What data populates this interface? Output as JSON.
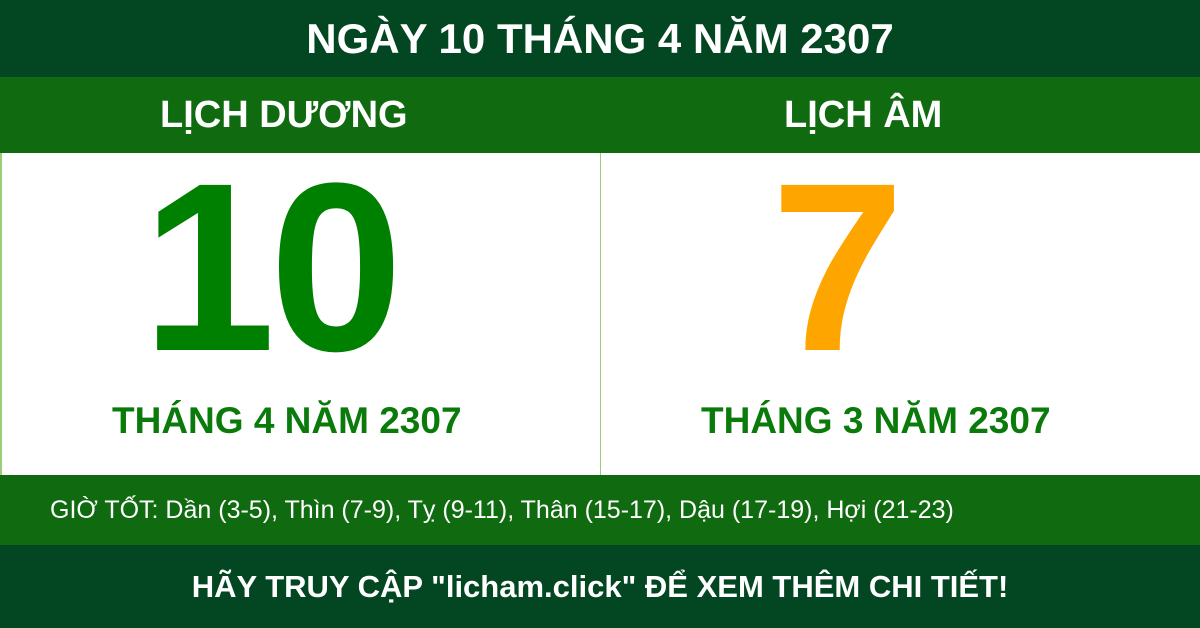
{
  "title": "NGÀY 10 THÁNG 4 NĂM 2307",
  "solar": {
    "heading": "LỊCH DƯƠNG",
    "day": "10",
    "month_year": "THÁNG 4 NĂM 2307"
  },
  "lunar": {
    "heading": "LỊCH ÂM",
    "day": "7",
    "month_year": "THÁNG 3 NĂM 2307"
  },
  "good_hours": "GIỜ TỐT: Dần (3-5), Thìn (7-9), Tỵ (9-11), Thân (15-17), Dậu (17-19), Hợi (21-23)",
  "footer": "HÃY TRUY CẬP \"licham.click\" ĐỂ XEM THÊM CHI TIẾT!",
  "colors": {
    "dark_green": "#034622",
    "green": "#106b10",
    "solar_day": "#008000",
    "lunar_day": "#ffa500"
  }
}
